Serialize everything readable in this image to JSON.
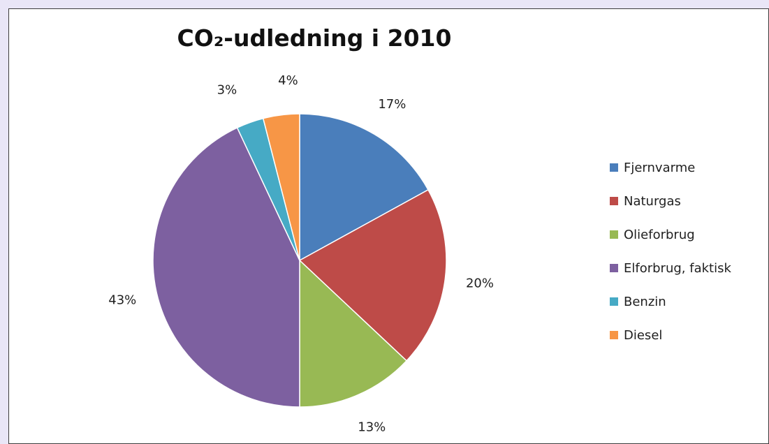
{
  "chart_data": {
    "type": "pie",
    "title": "CO₂-udledning i 2010",
    "categories": [
      "Fjernvarme",
      "Naturgas",
      "Olieforbrug",
      "Elforbrug, faktisk",
      "Benzin",
      "Diesel"
    ],
    "values": [
      17,
      20,
      13,
      43,
      3,
      4
    ],
    "labels": [
      "17%",
      "20%",
      "13%",
      "43%",
      "3%",
      "4%"
    ],
    "colors": [
      "#4a7ebb",
      "#be4b48",
      "#98b954",
      "#7d60a0",
      "#46aac5",
      "#f79646"
    ],
    "legend_position": "right"
  }
}
